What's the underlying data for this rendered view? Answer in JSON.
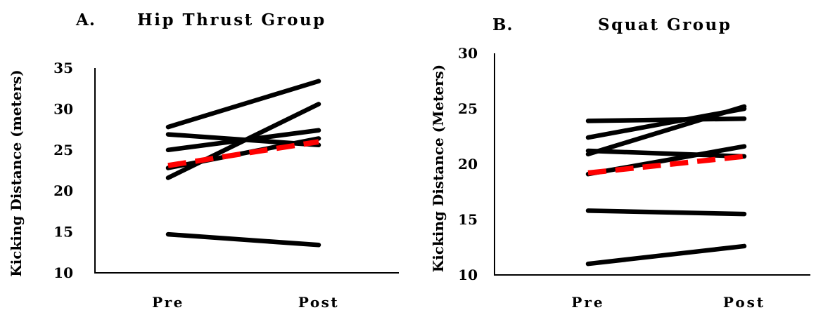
{
  "chart_data": [
    {
      "type": "line",
      "panel_label": "A.",
      "title": "Hip Thrust Group",
      "ylabel": "Kicking Distance (meters)",
      "xlabel": "",
      "categories": [
        "Pre",
        "Post"
      ],
      "ylim": [
        10,
        35
      ],
      "yticks": [
        10,
        15,
        20,
        25,
        30,
        35
      ],
      "grid": false,
      "legend": "none",
      "series": [
        {
          "values": [
            27.8,
            33.4
          ],
          "color": "#000000",
          "style": "solid"
        },
        {
          "values": [
            26.9,
            25.6
          ],
          "color": "#000000",
          "style": "solid"
        },
        {
          "values": [
            25.0,
            27.4
          ],
          "color": "#000000",
          "style": "solid"
        },
        {
          "values": [
            22.8,
            26.4
          ],
          "color": "#000000",
          "style": "solid"
        },
        {
          "values": [
            21.6,
            30.6
          ],
          "color": "#000000",
          "style": "solid"
        },
        {
          "values": [
            14.7,
            13.4
          ],
          "color": "#000000",
          "style": "solid"
        },
        {
          "values": [
            23.1,
            26.0
          ],
          "color": "#ff0000",
          "style": "dashed"
        }
      ]
    },
    {
      "type": "line",
      "panel_label": "B.",
      "title": "Squat Group",
      "ylabel": "Kicking Distance (Meters)",
      "xlabel": "",
      "categories": [
        "Pre",
        "Post"
      ],
      "ylim": [
        10,
        30
      ],
      "yticks": [
        10,
        15,
        20,
        25,
        30
      ],
      "grid": false,
      "legend": "none",
      "series": [
        {
          "values": [
            23.9,
            24.1
          ],
          "color": "#000000",
          "style": "solid"
        },
        {
          "values": [
            22.4,
            25.0
          ],
          "color": "#000000",
          "style": "solid"
        },
        {
          "values": [
            21.2,
            20.7
          ],
          "color": "#000000",
          "style": "solid"
        },
        {
          "values": [
            20.9,
            25.2
          ],
          "color": "#000000",
          "style": "solid"
        },
        {
          "values": [
            19.1,
            21.6
          ],
          "color": "#000000",
          "style": "solid"
        },
        {
          "values": [
            15.8,
            15.5
          ],
          "color": "#000000",
          "style": "solid"
        },
        {
          "values": [
            11.0,
            12.6
          ],
          "color": "#000000",
          "style": "solid"
        },
        {
          "values": [
            19.2,
            20.7
          ],
          "color": "#ff0000",
          "style": "dashed"
        }
      ]
    }
  ]
}
